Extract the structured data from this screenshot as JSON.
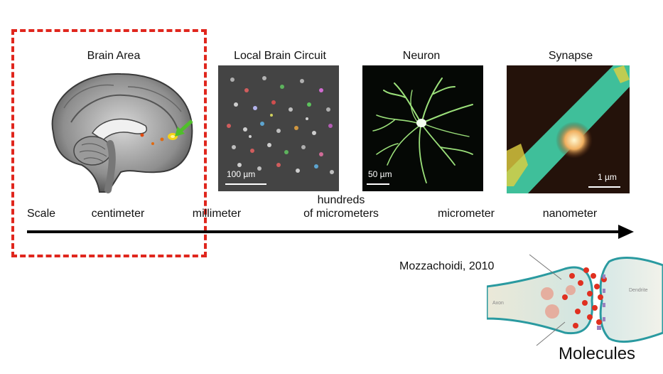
{
  "panels": {
    "brain_area": {
      "title": "Brain Area"
    },
    "local_circuit": {
      "title": "Local Brain Circuit",
      "scale_bar": "100 µm"
    },
    "neuron": {
      "title": "Neuron",
      "scale_bar": "50 µm"
    },
    "synapse": {
      "title": "Synapse",
      "scale_bar": "1 µm"
    }
  },
  "scale_axis": {
    "label": "Scale",
    "ticks": [
      "centimeter",
      "millimeter",
      "hundreds",
      "of micrometers",
      "micrometer",
      "nanometer"
    ]
  },
  "molecules": {
    "citation": "Mozzachoidi, 2010",
    "label": "Molecules",
    "axon_label": "Axon",
    "dendrite_label": "Dendrite"
  },
  "colors": {
    "highlight_box": "#e0261d",
    "arrow": "#000000",
    "neuron_green": "#9be07a",
    "synapse_teal": "#3fbf9a"
  }
}
